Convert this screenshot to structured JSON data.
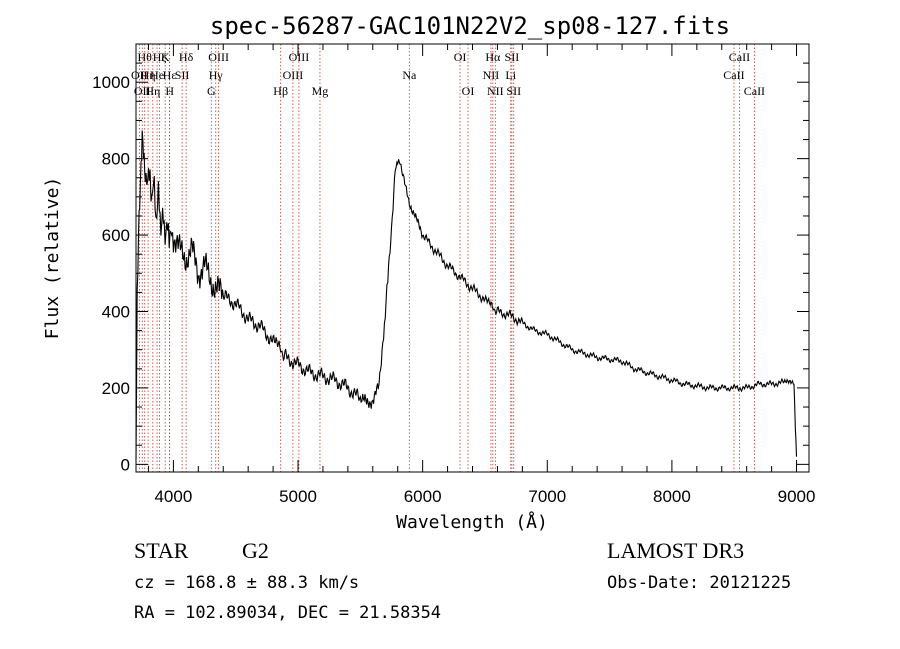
{
  "chart_data": {
    "type": "line",
    "title": "spec-56287-GAC101N22V2_sp08-127.fits",
    "xlabel": "Wavelength (Å)",
    "ylabel": "Flux (relative)",
    "xlim": [
      3700,
      9100
    ],
    "ylim": [
      -20,
      1100
    ],
    "xticks": [
      4000,
      5000,
      6000,
      7000,
      8000,
      9000
    ],
    "yticks": [
      0,
      200,
      400,
      600,
      800,
      1000
    ],
    "grid": false,
    "series": [
      {
        "name": "spectrum",
        "x": [
          3700,
          3710,
          3720,
          3730,
          3740,
          3750,
          3760,
          3770,
          3780,
          3800,
          3820,
          3840,
          3860,
          3880,
          3900,
          3920,
          3940,
          3960,
          3980,
          4000,
          4050,
          4100,
          4150,
          4200,
          4250,
          4300,
          4350,
          4400,
          4500,
          4600,
          4700,
          4800,
          4860,
          4900,
          5000,
          5100,
          5200,
          5300,
          5400,
          5500,
          5550,
          5600,
          5650,
          5680,
          5700,
          5720,
          5750,
          5780,
          5800,
          5820,
          5850,
          5900,
          5950,
          6000,
          6100,
          6200,
          6300,
          6400,
          6500,
          6560,
          6600,
          6700,
          6800,
          6900,
          7000,
          7100,
          7200,
          7300,
          7400,
          7500,
          7600,
          7700,
          7800,
          7900,
          8000,
          8100,
          8200,
          8300,
          8400,
          8500,
          8600,
          8700,
          8800,
          8900,
          8980,
          8990,
          9000
        ],
        "y": [
          0,
          420,
          600,
          700,
          800,
          880,
          830,
          760,
          720,
          780,
          700,
          740,
          650,
          700,
          630,
          640,
          600,
          620,
          590,
          600,
          560,
          540,
          560,
          500,
          520,
          480,
          460,
          440,
          420,
          380,
          360,
          320,
          300,
          280,
          260,
          240,
          230,
          220,
          200,
          170,
          160,
          170,
          200,
          300,
          400,
          480,
          600,
          760,
          800,
          780,
          740,
          680,
          640,
          600,
          560,
          520,
          490,
          460,
          430,
          410,
          400,
          390,
          370,
          350,
          340,
          320,
          300,
          290,
          280,
          275,
          270,
          250,
          240,
          230,
          220,
          210,
          205,
          200,
          200,
          200,
          200,
          210,
          210,
          215,
          210,
          100,
          20
        ]
      }
    ],
    "lines": [
      {
        "wave": 3727,
        "label": "OII",
        "row": 2
      },
      {
        "wave": 3750,
        "label": "OII",
        "row": 3
      },
      {
        "wave": 3770,
        "label": "Hθ",
        "row": 1
      },
      {
        "wave": 3797,
        "label": "Hη",
        "row": 2
      },
      {
        "wave": 3835,
        "label": "Hη",
        "row": 3
      },
      {
        "wave": 3869,
        "label": "He",
        "row": 2
      },
      {
        "wave": 3889,
        "label": "Hζ",
        "row": 1
      },
      {
        "wave": 3934,
        "label": "K",
        "row": 1
      },
      {
        "wave": 3970,
        "label": "H",
        "row": 3
      },
      {
        "wave": 3969,
        "label": "Hε",
        "row": 2
      },
      {
        "wave": 4070,
        "label": "SII",
        "row": 2
      },
      {
        "wave": 4102,
        "label": "Hδ",
        "row": 1
      },
      {
        "wave": 4304,
        "label": "G",
        "row": 3
      },
      {
        "wave": 4340,
        "label": "Hγ",
        "row": 2
      },
      {
        "wave": 4363,
        "label": "OIII",
        "row": 1
      },
      {
        "wave": 4861,
        "label": "Hβ",
        "row": 3
      },
      {
        "wave": 4959,
        "label": "OIII",
        "row": 2
      },
      {
        "wave": 5007,
        "label": "OIII",
        "row": 1
      },
      {
        "wave": 5176,
        "label": "Mg",
        "row": 3
      },
      {
        "wave": 5893,
        "label": "Na",
        "row": 2
      },
      {
        "wave": 6300,
        "label": "OI",
        "row": 1
      },
      {
        "wave": 6364,
        "label": "OI",
        "row": 3
      },
      {
        "wave": 6548,
        "label": "NII",
        "row": 2
      },
      {
        "wave": 6563,
        "label": "Hα",
        "row": 1
      },
      {
        "wave": 6583,
        "label": "NII",
        "row": 3
      },
      {
        "wave": 6707,
        "label": "Li",
        "row": 2
      },
      {
        "wave": 6716,
        "label": "SII",
        "row": 1
      },
      {
        "wave": 6731,
        "label": "SII",
        "row": 3
      },
      {
        "wave": 8498,
        "label": "CaII",
        "row": 2
      },
      {
        "wave": 8542,
        "label": "CaII",
        "row": 1
      },
      {
        "wave": 8662,
        "label": "CaII",
        "row": 3
      }
    ]
  },
  "info": {
    "object_class": "STAR",
    "subclass": "G2",
    "survey": "LAMOST DR3",
    "cz": "cz = 168.8 ± 88.3 km/s",
    "obs_date": "Obs-Date: 20121225",
    "coords": "RA = 102.89034, DEC =  21.58354"
  },
  "colors": {
    "line": "#000000",
    "marker": "#c0392b",
    "text": "#000000"
  }
}
